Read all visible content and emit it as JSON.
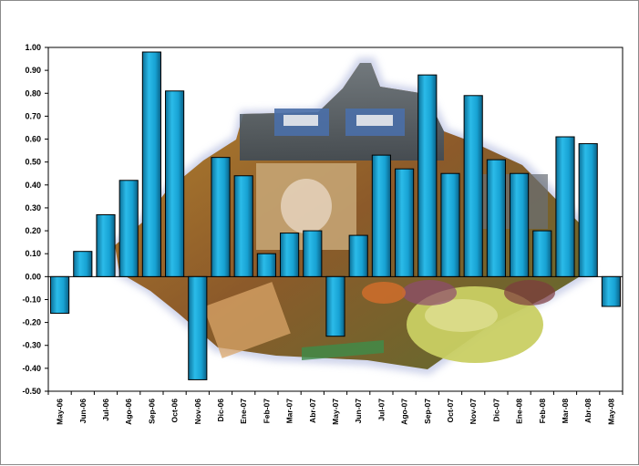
{
  "chart_data": {
    "type": "bar",
    "title": "",
    "xlabel": "",
    "ylabel": "",
    "ylim": [
      -0.5,
      1.0
    ],
    "ytick_step": 0.1,
    "yticks": [
      "1.00",
      "0.90",
      "0.80",
      "0.70",
      "0.60",
      "0.50",
      "0.40",
      "0.30",
      "0.20",
      "0.10",
      "0.00",
      "-0.10",
      "-0.20",
      "-0.30",
      "-0.40",
      "-0.50"
    ],
    "categories": [
      "May-06",
      "Jun-06",
      "Jul-06",
      "Ago-06",
      "Sep-06",
      "Oct-06",
      "Nov-06",
      "Dic-06",
      "Ene-07",
      "Feb-07",
      "Mar-07",
      "Abr-07",
      "May-07",
      "Jun-07",
      "Jul-07",
      "Ago-07",
      "Sep-07",
      "Oct-07",
      "Nov-07",
      "Dic-07",
      "Ene-08",
      "Feb-08",
      "Mar-08",
      "Abr-08",
      "May-08"
    ],
    "values": [
      -0.16,
      0.11,
      0.27,
      0.42,
      0.98,
      0.81,
      -0.45,
      0.52,
      0.44,
      0.1,
      0.19,
      0.2,
      -0.26,
      0.18,
      0.53,
      0.47,
      0.88,
      0.45,
      0.79,
      0.51,
      0.45,
      0.2,
      0.61,
      0.58,
      -0.13
    ],
    "grid": false,
    "legend": "none",
    "bar_color": "#1fa6d6",
    "bar_edge_color": "#000000",
    "background_image": "photo-collage-map-shape"
  }
}
